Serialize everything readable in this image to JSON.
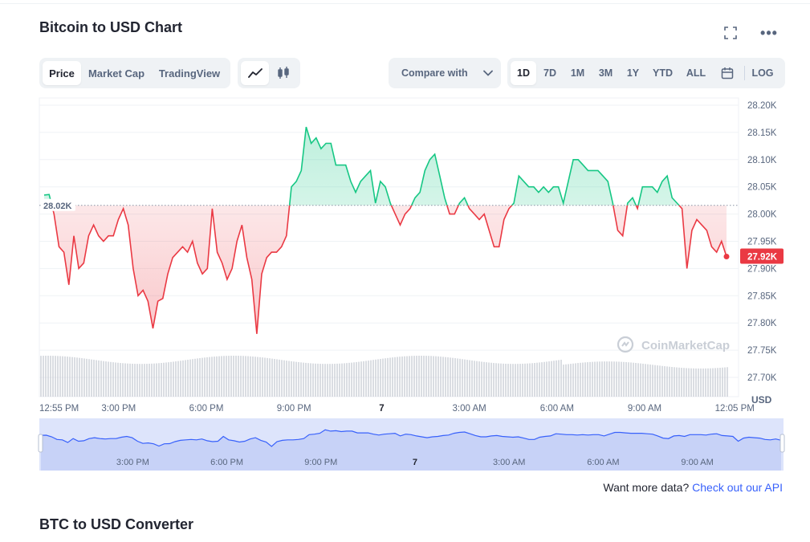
{
  "header": {
    "title": "Bitcoin to USD Chart",
    "more_label": "•••"
  },
  "toolbar": {
    "type_tabs": [
      {
        "label": "Price",
        "active": true
      },
      {
        "label": "Market Cap",
        "active": false
      },
      {
        "label": "TradingView",
        "active": false
      }
    ],
    "style_tabs": [
      {
        "icon": "line-chart-icon",
        "active": true
      },
      {
        "icon": "candlestick-icon",
        "active": false
      }
    ],
    "compare_label": "Compare with",
    "ranges": [
      {
        "label": "1D",
        "active": true
      },
      {
        "label": "7D",
        "active": false
      },
      {
        "label": "1M",
        "active": false
      },
      {
        "label": "3M",
        "active": false
      },
      {
        "label": "1Y",
        "active": false
      },
      {
        "label": "YTD",
        "active": false
      },
      {
        "label": "ALL",
        "active": false
      }
    ],
    "log_label": "LOG"
  },
  "chart_data": {
    "type": "line",
    "title": "Bitcoin to USD Chart",
    "ylabel": "USD",
    "currency_label": "USD",
    "ylim": [
      27.67,
      28.22
    ],
    "y_ticks": [
      "28.20K",
      "28.15K",
      "28.10K",
      "28.05K",
      "28.00K",
      "27.95K",
      "27.90K",
      "27.85K",
      "27.80K",
      "27.75K",
      "27.70K"
    ],
    "y_tick_values": [
      28.2,
      28.15,
      28.1,
      28.05,
      28.0,
      27.95,
      27.9,
      27.85,
      27.8,
      27.75,
      27.7
    ],
    "x_ticks": [
      "12:55 PM",
      "3:00 PM",
      "6:00 PM",
      "9:00 PM",
      "7",
      "3:00 AM",
      "6:00 AM",
      "9:00 AM",
      "12:05 PM"
    ],
    "x_tick_hours": [
      0,
      2.083,
      5.083,
      8.083,
      11.083,
      14.083,
      17.083,
      20.083,
      23.167
    ],
    "x_tick_bold": [
      false,
      false,
      false,
      false,
      true,
      false,
      false,
      false,
      false
    ],
    "reference_value": 28.016,
    "reference_label": "28.02K",
    "current_value": 27.922,
    "current_label": "27.92K",
    "up_color": "#16c784",
    "down_color": "#ea3943",
    "watermark": "CoinMarketCap",
    "series": [
      {
        "values": [
          28.035,
          28.036,
          28.0,
          27.94,
          27.93,
          27.87,
          27.96,
          27.9,
          27.91,
          27.96,
          27.98,
          27.96,
          27.95,
          27.96,
          27.96,
          27.99,
          28.01,
          27.98,
          27.9,
          27.85,
          27.86,
          27.84,
          27.79,
          27.84,
          27.845,
          27.89,
          27.92,
          27.93,
          27.94,
          27.93,
          27.95,
          27.91,
          27.89,
          27.9,
          28.01,
          27.93,
          27.91,
          27.88,
          27.9,
          27.95,
          27.98,
          27.92,
          27.88,
          27.78,
          27.89,
          27.92,
          27.93,
          27.93,
          27.94,
          27.96,
          28.05,
          28.06,
          28.08,
          28.16,
          28.13,
          28.14,
          28.12,
          28.13,
          28.13,
          28.09,
          28.09,
          28.09,
          28.06,
          28.04,
          28.06,
          28.07,
          28.08,
          28.02,
          28.06,
          28.05,
          28.02,
          28.0,
          27.98,
          28.0,
          28.01,
          28.03,
          28.04,
          28.08,
          28.1,
          28.11,
          28.07,
          28.03,
          28.0,
          28.0,
          28.02,
          28.03,
          28.01,
          28.0,
          27.99,
          28.0,
          27.97,
          27.94,
          27.94,
          27.99,
          28.01,
          28.02,
          28.07,
          28.06,
          28.05,
          28.05,
          28.04,
          28.05,
          28.04,
          28.05,
          28.05,
          28.02,
          28.06,
          28.1,
          28.1,
          28.09,
          28.08,
          28.08,
          28.08,
          28.07,
          28.06,
          28.02,
          27.97,
          27.96,
          28.02,
          28.03,
          28.01,
          28.05,
          28.05,
          28.05,
          28.04,
          28.06,
          28.07,
          28.03,
          28.02,
          28.01,
          27.9,
          27.97,
          27.99,
          27.98,
          27.97,
          27.94,
          27.93,
          27.95,
          27.922
        ]
      }
    ],
    "volume_level": 0.62,
    "navigator": {
      "x_ticks": [
        "3:00 PM",
        "6:00 PM",
        "9:00 PM",
        "7",
        "3:00 AM",
        "6:00 AM",
        "9:00 AM"
      ],
      "x_tick_hours": [
        2.083,
        5.083,
        8.083,
        11.083,
        14.083,
        17.083,
        20.083
      ],
      "x_tick_bold": [
        false,
        false,
        false,
        true,
        false,
        false,
        false
      ]
    }
  },
  "footer": {
    "prefix": "Want more data? ",
    "link_text": "Check out our API"
  },
  "converter": {
    "title": "BTC to USD Converter"
  }
}
